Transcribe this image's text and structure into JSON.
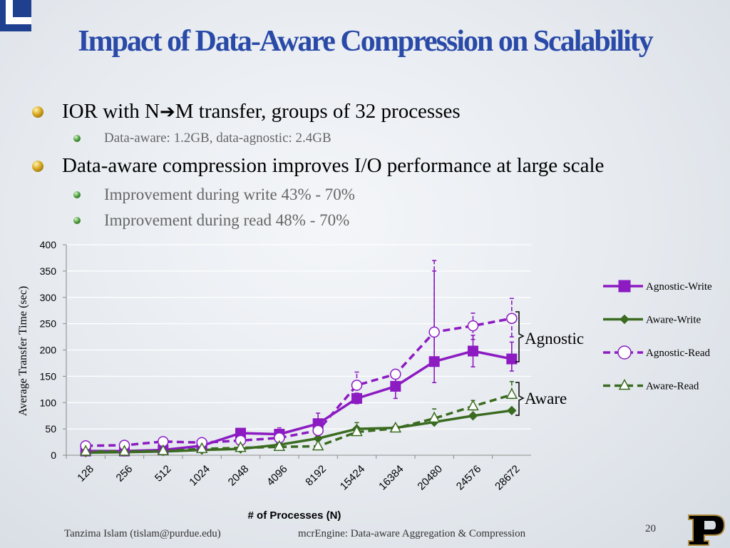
{
  "slide": {
    "title": "Impact of Data-Aware Compression on Scalability",
    "bullets": [
      {
        "text_before": "IOR with N",
        "arrow": "➔",
        "text_after": "M transfer, groups of 32 processes",
        "sub": [
          "Data-aware: 1.2GB, data-agnostic: 2.4GB"
        ]
      },
      {
        "text": "Data-aware compression improves I/O performance at large scale",
        "sub": [
          "Improvement during write 43% -  70%",
          "Improvement during read 48% - 70%"
        ]
      }
    ],
    "footer": {
      "author": "Tanzima Islam (tislam@purdue.edu)",
      "title": "mcrEngine: Data-aware Aggregation & Compression",
      "page_number": "20"
    },
    "icons": [
      "corner-logo-icon",
      "purdue-p-logo-icon"
    ]
  },
  "colors": {
    "title": "#2a4aa8",
    "agnostic": "#8c1bc2",
    "aware": "#3a6b20"
  },
  "chart_data": {
    "type": "line",
    "title": "",
    "xlabel": "# of Processes (N)",
    "ylabel": "Average Transfer Time  (sec)",
    "ylim": [
      0,
      400
    ],
    "yticks": [
      "0",
      "50",
      "100",
      "150",
      "200",
      "250",
      "300",
      "350",
      "400"
    ],
    "categories": [
      "128",
      "256",
      "512",
      "1024",
      "2048",
      "4096",
      "8192",
      "15424",
      "16384",
      "20480",
      "24576",
      "28672"
    ],
    "series": [
      {
        "name": "Agnostic-Write",
        "color": "#8c1bc2",
        "dashed": false,
        "marker": "square",
        "values": [
          8,
          8,
          10,
          18,
          42,
          40,
          60,
          108,
          131,
          178,
          198,
          183
        ],
        "err_low": [
          6,
          6,
          8,
          14,
          38,
          34,
          48,
          98,
          108,
          138,
          168,
          160
        ],
        "err_high": [
          10,
          10,
          12,
          22,
          46,
          46,
          80,
          118,
          150,
          350,
          228,
          215
        ]
      },
      {
        "name": "Aware-Write",
        "color": "#3a6b20",
        "dashed": false,
        "marker": "diamond",
        "values": [
          5,
          6,
          7,
          10,
          12,
          20,
          32,
          50,
          52,
          63,
          75,
          85
        ],
        "err_low": null,
        "err_high": null
      },
      {
        "name": "Agnostic-Read",
        "color": "#8c1bc2",
        "dashed": true,
        "marker": "circle",
        "values": [
          18,
          19,
          26,
          24,
          28,
          33,
          47,
          133,
          154,
          234,
          246,
          260
        ],
        "err_low": [
          16,
          17,
          23,
          21,
          25,
          28,
          42,
          110,
          150,
          180,
          220,
          225
        ],
        "err_high": [
          20,
          22,
          29,
          27,
          31,
          52,
          60,
          158,
          160,
          370,
          270,
          298
        ]
      },
      {
        "name": "Aware-Read",
        "color": "#3a6b20",
        "dashed": true,
        "marker": "triangle",
        "values": [
          7,
          7,
          8,
          12,
          14,
          16,
          17,
          44,
          51,
          70,
          93,
          115
        ],
        "err_low": [
          6,
          6,
          7,
          10,
          12,
          14,
          15,
          40,
          48,
          62,
          86,
          108
        ],
        "err_high": [
          8,
          8,
          9,
          14,
          16,
          18,
          19,
          62,
          54,
          88,
          104,
          140
        ]
      }
    ],
    "legend_position": "right",
    "annotations": [
      "Agnostic",
      "Aware"
    ]
  }
}
